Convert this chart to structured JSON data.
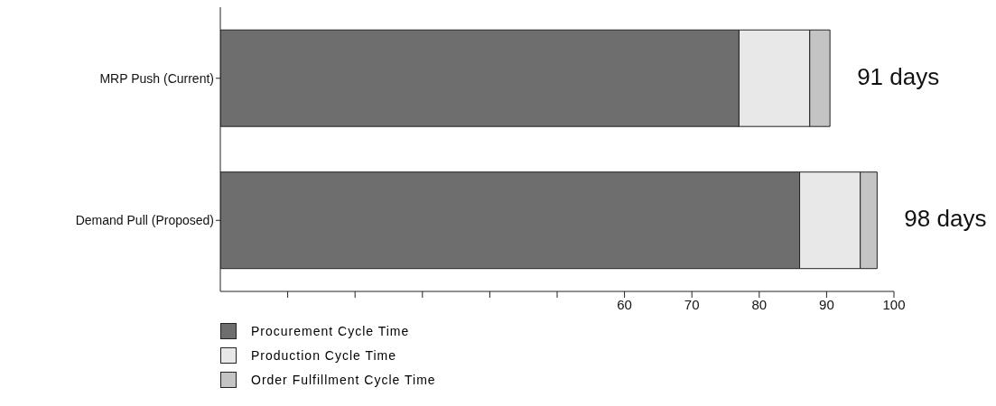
{
  "chart_data": {
    "type": "bar",
    "orientation": "horizontal",
    "stacked": true,
    "categories": [
      "MRP Push (Current)",
      "Demand Pull (Proposed)"
    ],
    "series": [
      {
        "name": "Procurement Cycle Time",
        "color": "#6e6e6e",
        "values": [
          77,
          86
        ]
      },
      {
        "name": "Production Cycle Time",
        "color": "#e8e8e8",
        "values": [
          10.5,
          9
        ]
      },
      {
        "name": "Order Fulfillment Cycle Time",
        "color": "#c4c4c4",
        "values": [
          3,
          2.5
        ]
      }
    ],
    "totals": [
      "91 days",
      "98 days"
    ],
    "xlim": [
      0,
      100
    ],
    "xticks": [
      {
        "value": 10,
        "label": null
      },
      {
        "value": 20,
        "label": null
      },
      {
        "value": 30,
        "label": null
      },
      {
        "value": 40,
        "label": null
      },
      {
        "value": 50,
        "label": null
      },
      60,
      70,
      80,
      90,
      100
    ],
    "legend": "bottom left"
  }
}
